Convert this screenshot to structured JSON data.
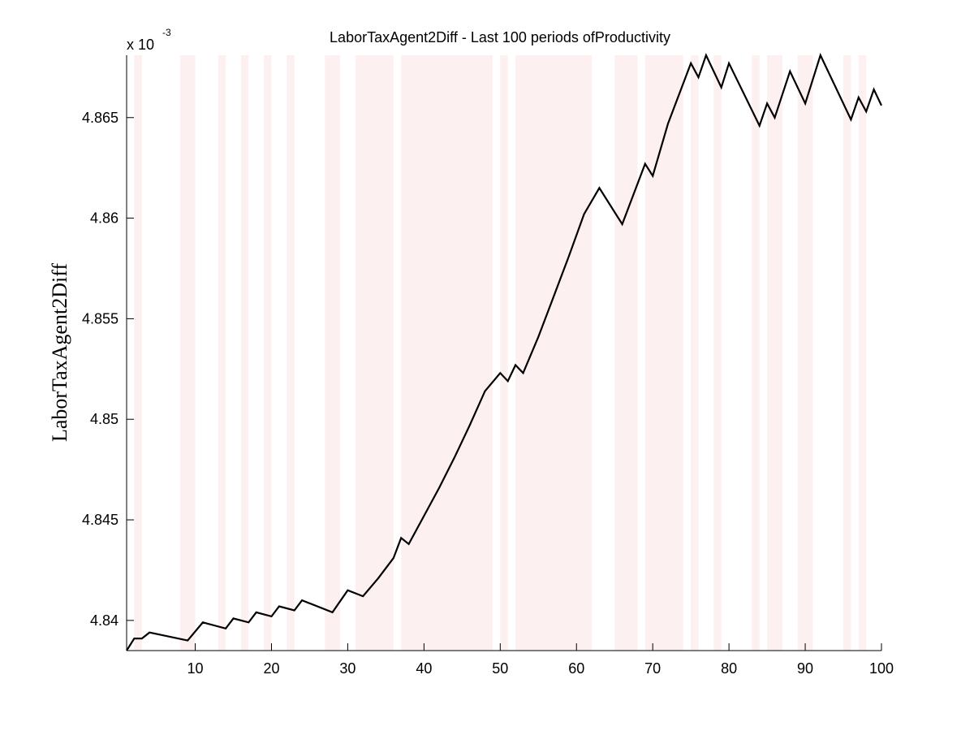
{
  "chart_data": {
    "type": "line",
    "title": "LaborTaxAgent2Diff - Last 100 periods ofProductivity",
    "xlabel": "",
    "ylabel": "LaborTaxAgent2Diff",
    "y_exponent_base": "x 10",
    "y_exponent_power": "-3",
    "xlim": [
      1,
      100
    ],
    "ylim": [
      4.8385,
      4.8681
    ],
    "x_ticks": [
      10,
      20,
      30,
      40,
      50,
      60,
      70,
      80,
      90,
      100
    ],
    "x_tick_labels": [
      "10",
      "20",
      "30",
      "40",
      "50",
      "60",
      "70",
      "80",
      "90",
      "100"
    ],
    "y_ticks": [
      4.84,
      4.845,
      4.85,
      4.855,
      4.86,
      4.865
    ],
    "y_tick_labels": [
      "4.84",
      "4.845",
      "4.85",
      "4.855",
      "4.86",
      "4.865"
    ],
    "grid": false,
    "line_color": "#000000",
    "band_color": "#fdf0f0",
    "shaded_periods": [
      [
        2,
        3
      ],
      [
        8,
        10
      ],
      [
        13,
        14
      ],
      [
        16,
        17
      ],
      [
        19,
        20
      ],
      [
        22,
        23
      ],
      [
        27,
        29
      ],
      [
        31,
        36
      ],
      [
        37,
        49
      ],
      [
        50,
        51
      ],
      [
        52,
        62
      ],
      [
        65,
        68
      ],
      [
        69,
        74
      ],
      [
        75,
        76
      ],
      [
        78,
        79
      ],
      [
        83,
        84
      ],
      [
        85,
        87
      ],
      [
        89,
        91
      ],
      [
        95,
        96
      ],
      [
        97,
        98
      ]
    ],
    "series": [
      {
        "values": [
          [
            1,
            4.8385
          ],
          [
            2,
            4.8391
          ],
          [
            3,
            4.8391
          ],
          [
            4,
            4.8394
          ],
          [
            9,
            4.839
          ],
          [
            11,
            4.8399
          ],
          [
            14,
            4.8396
          ],
          [
            15,
            4.8401
          ],
          [
            17,
            4.8399
          ],
          [
            18,
            4.8404
          ],
          [
            20,
            4.8402
          ],
          [
            21,
            4.8407
          ],
          [
            23,
            4.8405
          ],
          [
            24,
            4.841
          ],
          [
            28,
            4.8404
          ],
          [
            30,
            4.8415
          ],
          [
            32,
            4.8412
          ],
          [
            34,
            4.8421
          ],
          [
            36,
            4.8431
          ],
          [
            37,
            4.8441
          ],
          [
            38,
            4.8438
          ],
          [
            40,
            4.8452
          ],
          [
            42,
            4.8466
          ],
          [
            44,
            4.8481
          ],
          [
            46,
            4.8497
          ],
          [
            48,
            4.8514
          ],
          [
            50,
            4.8523
          ],
          [
            51,
            4.8519
          ],
          [
            52,
            4.8527
          ],
          [
            53,
            4.8523
          ],
          [
            55,
            4.8541
          ],
          [
            57,
            4.8561
          ],
          [
            59,
            4.8581
          ],
          [
            61,
            4.8602
          ],
          [
            63,
            4.8615
          ],
          [
            66,
            4.8597
          ],
          [
            69,
            4.8627
          ],
          [
            70,
            4.8621
          ],
          [
            72,
            4.8647
          ],
          [
            75,
            4.8677
          ],
          [
            76,
            4.867
          ],
          [
            77,
            4.8681
          ],
          [
            79,
            4.8665
          ],
          [
            80,
            4.8677
          ],
          [
            84,
            4.8646
          ],
          [
            85,
            4.8657
          ],
          [
            86,
            4.865
          ],
          [
            88,
            4.8673
          ],
          [
            90,
            4.8657
          ],
          [
            92,
            4.8681
          ],
          [
            96,
            4.8649
          ],
          [
            97,
            4.866
          ],
          [
            98,
            4.8653
          ],
          [
            99,
            4.8664
          ],
          [
            100,
            4.8656
          ]
        ]
      }
    ]
  }
}
